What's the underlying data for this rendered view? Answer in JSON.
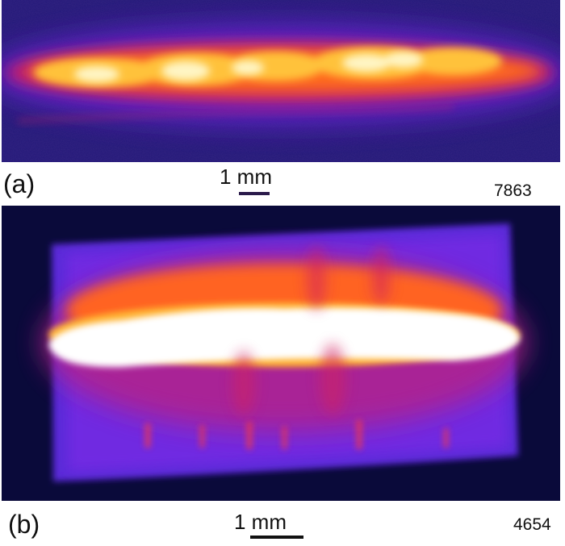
{
  "panel_a": {
    "letter": "(a)",
    "scale_label": "1 mm",
    "frame_id": "7863",
    "colormap": [
      "#0b0b35",
      "#2a1480",
      "#6b1fd0",
      "#c2207a",
      "#ff5a1f",
      "#ffb030",
      "#fff7c8"
    ]
  },
  "panel_b": {
    "letter": "(b)",
    "scale_label": "1 mm",
    "frame_id": "4654",
    "colormap": [
      "#0b0b35",
      "#2a1480",
      "#6b1fd0",
      "#c2207a",
      "#ff5a1f",
      "#ffb030",
      "#ffffff"
    ]
  }
}
